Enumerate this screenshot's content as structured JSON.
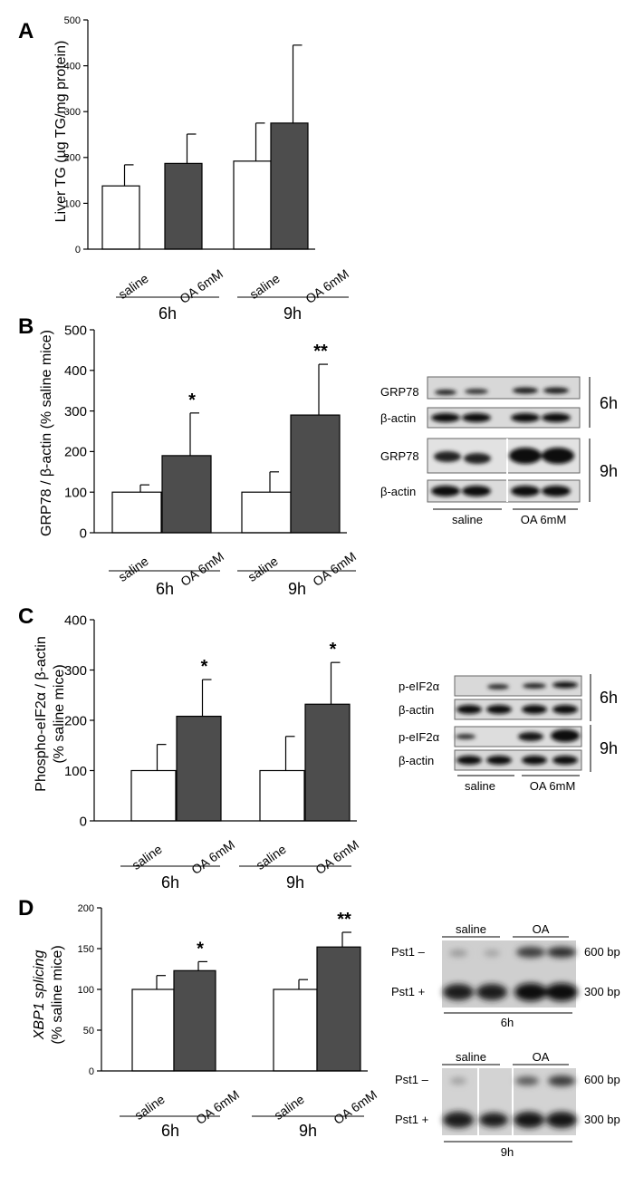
{
  "colors": {
    "saline": "#ffffff",
    "oa": "#4d4d4d",
    "axis": "#000000"
  },
  "panels": [
    {
      "letter": "A",
      "ylabel": "Liver TG (µg TG/mg protein)",
      "ylim": [
        0,
        500
      ],
      "yticks": [
        "0",
        "100",
        "200",
        "300",
        "400",
        "500"
      ],
      "bar_labels": [
        "saline",
        "OA 6mM",
        "saline",
        "OA 6mM"
      ],
      "groups": [
        "6h",
        "9h"
      ],
      "stars": [
        "",
        "",
        "",
        ""
      ]
    },
    {
      "letter": "B",
      "ylabel": "GRP78 / β-actin (% saline mice)",
      "ylim": [
        0,
        500
      ],
      "yticks": [
        "0",
        "100",
        "200",
        "300",
        "400",
        "500"
      ],
      "bar_labels": [
        "saline",
        "OA 6mM",
        "saline",
        "OA 6mM"
      ],
      "groups": [
        "6h",
        "9h"
      ],
      "stars": [
        "",
        "*",
        "",
        "**"
      ]
    },
    {
      "letter": "C",
      "ylabel1": "Phospho-eIF2α / β-actin",
      "ylabel2": "(% saline mice)",
      "ylim": [
        0,
        400
      ],
      "yticks": [
        "0",
        "100",
        "200",
        "300",
        "400"
      ],
      "bar_labels": [
        "saline",
        "OA 6mM",
        "saline",
        "OA 6mM"
      ],
      "groups": [
        "6h",
        "9h"
      ],
      "stars": [
        "",
        "*",
        "",
        "*"
      ]
    },
    {
      "letter": "D",
      "ylabel1": "XBP1 splicing",
      "ylabel2": "(% saline mice)",
      "ylim": [
        0,
        200
      ],
      "yticks": [
        "0",
        "50",
        "100",
        "150",
        "200"
      ],
      "bar_labels": [
        "saline",
        "OA 6mM",
        "saline",
        "OA 6mM"
      ],
      "groups": [
        "6h",
        "9h"
      ],
      "stars": [
        "",
        "*",
        "",
        "**"
      ]
    }
  ],
  "chart_data": [
    {
      "type": "bar",
      "panel": "A",
      "categories": [
        "6h saline",
        "6h OA 6mM",
        "9h saline",
        "9h OA 6mM"
      ],
      "values": [
        138,
        187,
        192,
        275
      ],
      "errors": [
        46,
        64,
        83,
        170
      ],
      "ylabel": "Liver TG (µg TG/mg protein)",
      "ylim": [
        0,
        500
      ]
    },
    {
      "type": "bar",
      "panel": "B",
      "categories": [
        "6h saline",
        "6h OA 6mM",
        "9h saline",
        "9h OA 6mM"
      ],
      "values": [
        100,
        190,
        100,
        290
      ],
      "errors": [
        18,
        105,
        50,
        125
      ],
      "ylabel": "GRP78 / β-actin (% saline mice)",
      "ylim": [
        0,
        500
      ]
    },
    {
      "type": "bar",
      "panel": "C",
      "categories": [
        "6h saline",
        "6h OA 6mM",
        "9h saline",
        "9h OA 6mM"
      ],
      "values": [
        100,
        208,
        100,
        232
      ],
      "errors": [
        52,
        73,
        68,
        83
      ],
      "ylabel": "Phospho-eIF2α / β-actin (% saline mice)",
      "ylim": [
        0,
        400
      ]
    },
    {
      "type": "bar",
      "panel": "D",
      "categories": [
        "6h saline",
        "6h OA 6mM",
        "9h saline",
        "9h OA 6mM"
      ],
      "values": [
        100,
        123,
        100,
        152
      ],
      "errors": [
        17,
        11,
        12,
        18
      ],
      "ylabel": "XBP1 splicing (% saline mice)",
      "ylim": [
        0,
        200
      ]
    }
  ],
  "blots": {
    "B": {
      "rows": [
        "GRP78",
        "β-actin",
        "GRP78",
        "β-actin"
      ],
      "times": [
        "6h",
        "9h"
      ],
      "groups": [
        "saline",
        "OA 6mM"
      ]
    },
    "C": {
      "rows": [
        "p-eIF2α",
        "β-actin",
        "p-eIF2α",
        "β-actin"
      ],
      "times": [
        "6h",
        "9h"
      ],
      "groups": [
        "saline",
        "OA 6mM"
      ]
    },
    "D": {
      "headers": [
        "saline",
        "OA"
      ],
      "bands": [
        "Pst1 –",
        "Pst1 +"
      ],
      "sizes": [
        "600 bp",
        "300 bp"
      ],
      "times": [
        "6h",
        "9h"
      ]
    }
  }
}
